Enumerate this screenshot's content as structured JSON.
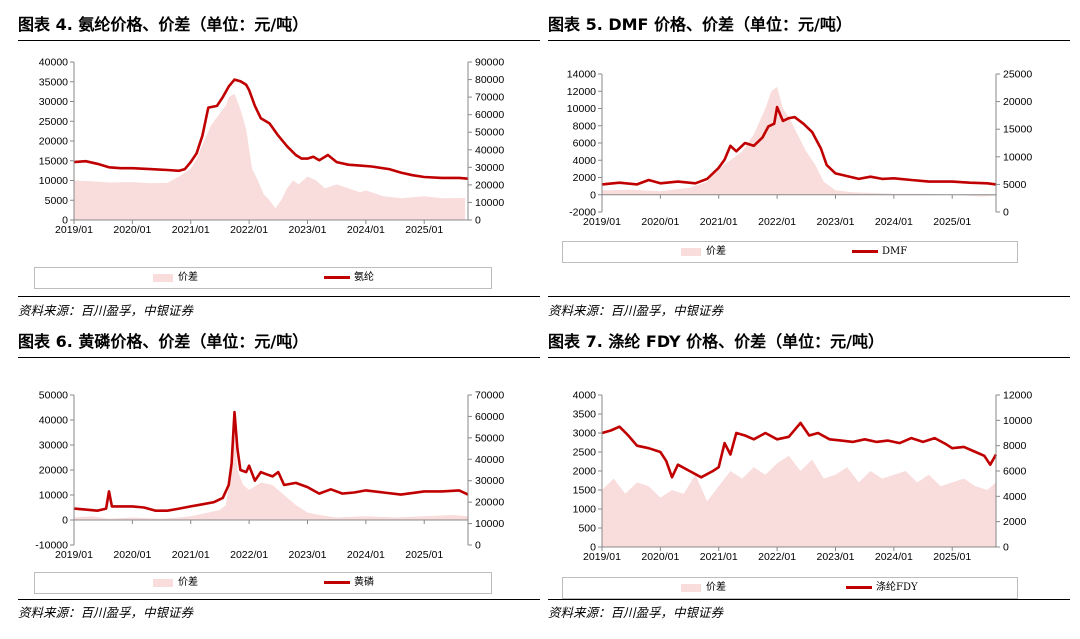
{
  "source_text": "资料来源：百川盈孚，中银证券",
  "colors": {
    "spread_area": "#f9dcdc",
    "price_line": "#c00000"
  },
  "chart_data": [
    {
      "type": "line",
      "title": "图表 4. 氨纶价格、价差（单位：元/吨）",
      "x_ticks": [
        "2019/01",
        "2020/01",
        "2021/01",
        "2022/01",
        "2023/01",
        "2024/01",
        "2025/01"
      ],
      "x_range": [
        2019.0,
        2025.75
      ],
      "y_left_range": [
        0,
        40000
      ],
      "y_left_ticks": [
        0,
        5000,
        10000,
        15000,
        20000,
        25000,
        30000,
        35000,
        40000
      ],
      "y_right_range": [
        0,
        90000
      ],
      "y_right_ticks": [
        0,
        10000,
        20000,
        30000,
        40000,
        50000,
        60000,
        70000,
        80000,
        90000
      ],
      "legend_position": "bottom",
      "series": [
        {
          "name": "价差",
          "kind": "area",
          "axis": "left",
          "x": [
            2019.0,
            2019.3,
            2019.6,
            2020.0,
            2020.3,
            2020.6,
            2020.8,
            2021.0,
            2021.1,
            2021.2,
            2021.35,
            2021.5,
            2021.6,
            2021.65,
            2021.75,
            2021.85,
            2021.95,
            2022.05,
            2022.15,
            2022.25,
            2022.35,
            2022.45,
            2022.55,
            2022.65,
            2022.75,
            2022.85,
            2023.0,
            2023.15,
            2023.3,
            2023.5,
            2023.7,
            2023.9,
            2024.0,
            2024.3,
            2024.6,
            2025.0,
            2025.3,
            2025.7
          ],
          "values": [
            10000,
            9800,
            9500,
            9600,
            9300,
            9400,
            11000,
            13000,
            15500,
            19000,
            24000,
            27000,
            29000,
            31000,
            32000,
            28000,
            23000,
            13000,
            10000,
            6500,
            5000,
            3000,
            5000,
            8000,
            10000,
            9000,
            11000,
            10000,
            8000,
            9000,
            8000,
            7000,
            7500,
            6000,
            5500,
            6000,
            5500,
            5600
          ]
        },
        {
          "name": "氨纶",
          "kind": "line",
          "axis": "right",
          "x": [
            2019.0,
            2019.2,
            2019.4,
            2019.6,
            2019.8,
            2020.0,
            2020.3,
            2020.6,
            2020.8,
            2020.9,
            2021.0,
            2021.1,
            2021.2,
            2021.3,
            2021.45,
            2021.55,
            2021.65,
            2021.75,
            2021.85,
            2021.95,
            2022.0,
            2022.1,
            2022.2,
            2022.35,
            2022.5,
            2022.65,
            2022.8,
            2022.9,
            2023.0,
            2023.1,
            2023.2,
            2023.35,
            2023.5,
            2023.7,
            2023.9,
            2024.1,
            2024.4,
            2024.6,
            2024.8,
            2025.0,
            2025.3,
            2025.6,
            2025.75
          ],
          "values": [
            33000,
            33500,
            32000,
            30000,
            29500,
            29500,
            29000,
            28500,
            28000,
            29000,
            33000,
            38000,
            48000,
            64000,
            65000,
            70000,
            76000,
            80000,
            79000,
            77000,
            74000,
            65000,
            58000,
            55000,
            48000,
            42000,
            37000,
            35000,
            35000,
            36000,
            34000,
            37000,
            33000,
            31500,
            31000,
            30500,
            29000,
            27000,
            25500,
            24500,
            24000,
            24000,
            23500
          ]
        }
      ]
    },
    {
      "type": "line",
      "title": "图表 5. DMF 价格、价差（单位：元/吨）",
      "x_ticks": [
        "2019/01",
        "2020/01",
        "2021/01",
        "2022/01",
        "2023/01",
        "2024/01",
        "2025/01"
      ],
      "x_range": [
        2019.0,
        2025.75
      ],
      "y_left_range": [
        -2000,
        14000
      ],
      "y_left_ticks": [
        -2000,
        0,
        2000,
        4000,
        6000,
        8000,
        10000,
        12000,
        14000
      ],
      "y_right_range": [
        0,
        25000
      ],
      "y_right_ticks": [
        0,
        5000,
        10000,
        15000,
        20000,
        25000
      ],
      "legend_position": "bottom",
      "series": [
        {
          "name": "价差",
          "kind": "area",
          "axis": "left",
          "x": [
            2019.0,
            2019.5,
            2020.0,
            2020.5,
            2020.8,
            2021.0,
            2021.2,
            2021.4,
            2021.6,
            2021.8,
            2021.9,
            2022.0,
            2022.1,
            2022.2,
            2022.35,
            2022.5,
            2022.65,
            2022.8,
            2023.0,
            2023.3,
            2023.6,
            2024.0,
            2024.5,
            2025.0,
            2025.5,
            2025.75
          ],
          "values": [
            500,
            600,
            400,
            800,
            1500,
            3000,
            4000,
            5000,
            7000,
            10000,
            12000,
            12500,
            10000,
            9000,
            7000,
            5000,
            3500,
            1500,
            500,
            300,
            200,
            100,
            100,
            0,
            -200,
            -100
          ]
        },
        {
          "name": "DMF",
          "kind": "line",
          "axis": "right",
          "x": [
            2019.0,
            2019.3,
            2019.6,
            2019.8,
            2020.0,
            2020.3,
            2020.6,
            2020.8,
            2021.0,
            2021.1,
            2021.2,
            2021.3,
            2021.45,
            2021.6,
            2021.75,
            2021.85,
            2021.95,
            2022.0,
            2022.1,
            2022.2,
            2022.3,
            2022.45,
            2022.6,
            2022.75,
            2022.85,
            2023.0,
            2023.2,
            2023.4,
            2023.6,
            2023.8,
            2024.0,
            2024.3,
            2024.6,
            2025.0,
            2025.3,
            2025.6,
            2025.75
          ],
          "values": [
            5000,
            5300,
            5000,
            5800,
            5200,
            5500,
            5200,
            6000,
            8000,
            9500,
            12000,
            11000,
            12500,
            12000,
            13500,
            15500,
            16000,
            19000,
            16500,
            17000,
            17200,
            16000,
            14500,
            11500,
            8500,
            7000,
            6500,
            6000,
            6400,
            6000,
            6100,
            5800,
            5500,
            5500,
            5300,
            5200,
            5000
          ]
        }
      ]
    },
    {
      "type": "line",
      "title": "图表 6. 黄磷价格、价差（单位：元/吨）",
      "x_ticks": [
        "2019/01",
        "2020/01",
        "2021/01",
        "2022/01",
        "2023/01",
        "2024/01",
        "2025/01"
      ],
      "x_range": [
        2019.0,
        2025.75
      ],
      "y_left_range": [
        -10000,
        50000
      ],
      "y_left_ticks": [
        -10000,
        0,
        10000,
        20000,
        30000,
        40000,
        50000
      ],
      "y_right_range": [
        0,
        70000
      ],
      "y_right_ticks": [
        0,
        10000,
        20000,
        30000,
        40000,
        50000,
        60000,
        70000
      ],
      "legend_position": "bottom",
      "series": [
        {
          "name": "价差",
          "kind": "area",
          "axis": "left",
          "x": [
            2019.0,
            2019.3,
            2019.6,
            2020.0,
            2020.5,
            2020.8,
            2021.0,
            2021.3,
            2021.5,
            2021.6,
            2021.7,
            2021.75,
            2021.8,
            2021.9,
            2022.0,
            2022.2,
            2022.4,
            2022.6,
            2022.8,
            2023.0,
            2023.2,
            2023.5,
            2024.0,
            2024.5,
            2025.0,
            2025.5,
            2025.75
          ],
          "values": [
            1000,
            1500,
            500,
            1000,
            500,
            1000,
            1500,
            3000,
            4000,
            6000,
            20000,
            38000,
            20000,
            14000,
            12000,
            15000,
            14000,
            10000,
            6000,
            3000,
            2000,
            1000,
            1500,
            1000,
            1500,
            2000,
            1500
          ]
        },
        {
          "name": "黄磷",
          "kind": "line",
          "axis": "right",
          "x": [
            2019.0,
            2019.2,
            2019.4,
            2019.55,
            2019.6,
            2019.65,
            2019.8,
            2020.0,
            2020.2,
            2020.4,
            2020.6,
            2020.8,
            2021.0,
            2021.2,
            2021.4,
            2021.55,
            2021.65,
            2021.7,
            2021.75,
            2021.8,
            2021.85,
            2021.95,
            2022.0,
            2022.1,
            2022.2,
            2022.3,
            2022.4,
            2022.5,
            2022.6,
            2022.8,
            2023.0,
            2023.2,
            2023.4,
            2023.6,
            2023.8,
            2024.0,
            2024.3,
            2024.6,
            2025.0,
            2025.3,
            2025.6,
            2025.75
          ],
          "values": [
            17000,
            16500,
            16000,
            17000,
            25000,
            18000,
            18000,
            18000,
            17500,
            16000,
            16000,
            17000,
            18000,
            19000,
            20000,
            22000,
            28000,
            38000,
            62000,
            45000,
            35000,
            34000,
            37000,
            30000,
            34000,
            33000,
            32000,
            34000,
            28000,
            29000,
            27000,
            24000,
            26000,
            24000,
            24500,
            25500,
            24500,
            23500,
            25000,
            25000,
            25500,
            23500
          ]
        }
      ]
    },
    {
      "type": "line",
      "title": "图表 7. 涤纶 FDY 价格、价差（单位：元/吨）",
      "x_ticks": [
        "2019/01",
        "2020/01",
        "2021/01",
        "2022/01",
        "2023/01",
        "2024/01",
        "2025/01"
      ],
      "x_range": [
        2019.0,
        2025.75
      ],
      "y_left_range": [
        0,
        4000
      ],
      "y_left_ticks": [
        0,
        500,
        1000,
        1500,
        2000,
        2500,
        3000,
        3500,
        4000
      ],
      "y_right_range": [
        0,
        12000
      ],
      "y_right_ticks": [
        0,
        2000,
        4000,
        6000,
        8000,
        10000,
        12000
      ],
      "legend_position": "bottom",
      "series": [
        {
          "name": "价差",
          "kind": "area",
          "axis": "left",
          "x": [
            2019.0,
            2019.2,
            2019.4,
            2019.6,
            2019.8,
            2020.0,
            2020.2,
            2020.4,
            2020.6,
            2020.8,
            2021.0,
            2021.2,
            2021.4,
            2021.6,
            2021.8,
            2022.0,
            2022.2,
            2022.4,
            2022.6,
            2022.8,
            2023.0,
            2023.2,
            2023.4,
            2023.6,
            2023.8,
            2024.0,
            2024.2,
            2024.4,
            2024.6,
            2024.8,
            2025.0,
            2025.2,
            2025.4,
            2025.6,
            2025.75
          ],
          "values": [
            1500,
            1800,
            1400,
            1700,
            1600,
            1300,
            1500,
            1400,
            1900,
            1200,
            1600,
            2000,
            1800,
            2100,
            1900,
            2200,
            2400,
            2000,
            2300,
            1800,
            1900,
            2100,
            1700,
            2000,
            1800,
            1900,
            2000,
            1700,
            1900,
            1600,
            1700,
            1800,
            1600,
            1500,
            1700
          ]
        },
        {
          "name": "涤纶FDY",
          "kind": "line",
          "axis": "right",
          "x": [
            2019.0,
            2019.15,
            2019.3,
            2019.45,
            2019.6,
            2019.8,
            2020.0,
            2020.1,
            2020.2,
            2020.3,
            2020.5,
            2020.7,
            2020.9,
            2021.0,
            2021.1,
            2021.2,
            2021.3,
            2021.45,
            2021.6,
            2021.8,
            2022.0,
            2022.2,
            2022.4,
            2022.55,
            2022.7,
            2022.9,
            2023.1,
            2023.3,
            2023.5,
            2023.7,
            2023.9,
            2024.1,
            2024.3,
            2024.5,
            2024.7,
            2024.9,
            2025.0,
            2025.2,
            2025.4,
            2025.55,
            2025.65,
            2025.75
          ],
          "values": [
            9000,
            9200,
            9500,
            8800,
            8000,
            7800,
            7500,
            6800,
            5500,
            6500,
            6000,
            5500,
            6000,
            6300,
            8200,
            7300,
            9000,
            8800,
            8500,
            9000,
            8500,
            8700,
            9800,
            8800,
            9000,
            8500,
            8400,
            8300,
            8500,
            8300,
            8400,
            8200,
            8600,
            8300,
            8600,
            8100,
            7800,
            7900,
            7500,
            7200,
            6500,
            7300
          ]
        }
      ]
    }
  ]
}
